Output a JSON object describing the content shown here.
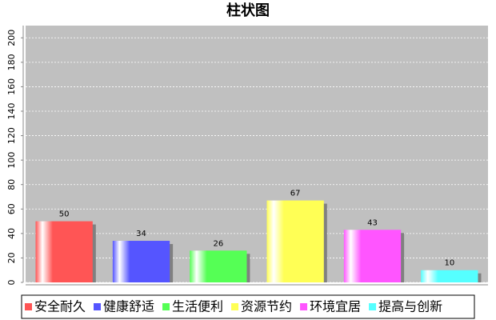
{
  "chart_data": {
    "type": "bar",
    "title": "柱状图",
    "categories": [
      "安全耐久",
      "健康舒适",
      "生活便利",
      "资源节约",
      "环境宜居",
      "提高与创新"
    ],
    "values": [
      50,
      34,
      26,
      67,
      43,
      10
    ],
    "colors": [
      "#ff5555",
      "#5555ff",
      "#55ff55",
      "#ffff55",
      "#ff55ff",
      "#55ffff"
    ],
    "ylim": [
      0,
      210
    ],
    "yticks": [
      0,
      20,
      40,
      60,
      80,
      100,
      120,
      140,
      160,
      180,
      200
    ],
    "grid": true
  }
}
